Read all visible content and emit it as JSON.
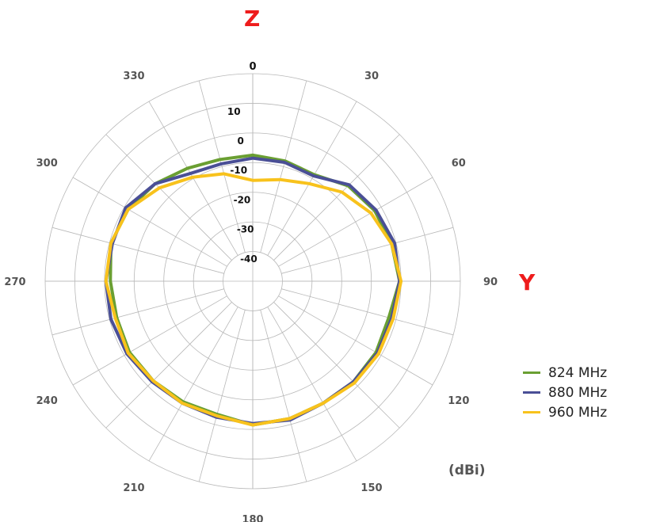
{
  "chart_data": {
    "type": "polar-line",
    "title": "",
    "unit_label": "(dBi)",
    "axis_labels": {
      "vertical": "Z",
      "horizontal": "Y"
    },
    "radial_range": [
      -50,
      20
    ],
    "radial_ticks": [
      "10",
      "0",
      "-10",
      "-20",
      "-30",
      "-40"
    ],
    "angle_ticks": [
      "0",
      "30",
      "60",
      "90",
      "120",
      "150",
      "180",
      "210",
      "240",
      "270",
      "300",
      "330"
    ],
    "angle_step_deg": 15,
    "angles": [
      0,
      15,
      30,
      45,
      60,
      75,
      90,
      105,
      120,
      135,
      150,
      165,
      180,
      195,
      210,
      225,
      240,
      255,
      270,
      285,
      300,
      315,
      330,
      345
    ],
    "series": [
      {
        "name": "824 MHz",
        "color": "#6a9f32",
        "values": [
          -7.5,
          -8,
          -8.5,
          -4.5,
          -2.5,
          -1.5,
          -0.5,
          -2.5,
          -2,
          -2,
          -2.5,
          -2,
          -1.5,
          -3.5,
          -3,
          -2.5,
          -2,
          -2.5,
          -2,
          -0.5,
          -1.5,
          -3.5,
          -6,
          -7.5
        ]
      },
      {
        "name": "880 MHz",
        "color": "#4a4f96",
        "values": [
          -8.5,
          -8.5,
          -9,
          -4,
          -2,
          -0.5,
          -0.5,
          -1.5,
          -1.5,
          -2,
          -2.5,
          -1.5,
          -2,
          -2.5,
          -2.5,
          -2,
          -1,
          -0.5,
          -0.5,
          -1,
          -0.5,
          -3.5,
          -8,
          -9
        ]
      },
      {
        "name": "960 MHz",
        "color": "#f8c21c",
        "values": [
          -16,
          -14.5,
          -12,
          -7.5,
          -4,
          -1.5,
          0,
          -1,
          -1,
          -1.5,
          -2.5,
          -2,
          -1.5,
          -3,
          -2.5,
          -2.5,
          -1.5,
          -2,
          -0.5,
          -0.5,
          -1.5,
          -5.5,
          -9.5,
          -12.5
        ]
      }
    ]
  }
}
